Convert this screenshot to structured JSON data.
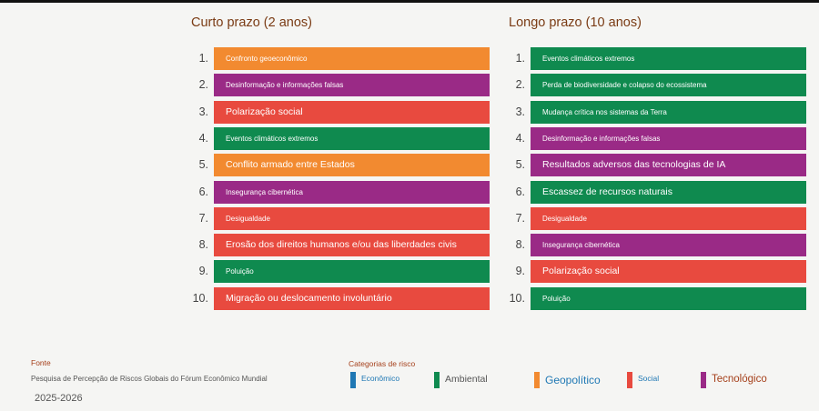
{
  "colors": {
    "Econômico": "#1f78b4",
    "Ambiental": "#0f8a4f",
    "Geopolítico": "#f28a30",
    "Social": "#e84a3f",
    "Tecnológico": "#9a2a86"
  },
  "chart_data": [
    {
      "type": "table",
      "title": "Curto prazo (2 anos)",
      "rows": [
        {
          "rank": "1.",
          "label": "Confronto geoeconômico",
          "category": "Geopolítico"
        },
        {
          "rank": "2.",
          "label": "Desinformação e informações falsas",
          "category": "Tecnológico"
        },
        {
          "rank": "3.",
          "label": "Polarização social",
          "category": "Social"
        },
        {
          "rank": "4.",
          "label": "Eventos climáticos extremos",
          "category": "Ambiental"
        },
        {
          "rank": "5.",
          "label": "Conflito armado entre Estados",
          "category": "Geopolítico"
        },
        {
          "rank": "6.",
          "label": "Insegurança cibernética",
          "category": "Tecnológico"
        },
        {
          "rank": "7.",
          "label": "Desigualdade",
          "category": "Social"
        },
        {
          "rank": "8.",
          "label": "Erosão dos direitos humanos e/ou das liberdades civis",
          "category": "Social"
        },
        {
          "rank": "9.",
          "label": "Poluição",
          "category": "Ambiental"
        },
        {
          "rank": "10.",
          "label": "Migração ou deslocamento involuntário",
          "category": "Social"
        }
      ]
    },
    {
      "type": "table",
      "title": "Longo prazo (10 anos)",
      "rows": [
        {
          "rank": "1.",
          "label": "Eventos climáticos extremos",
          "category": "Ambiental"
        },
        {
          "rank": "2.",
          "label": "Perda de biodiversidade e colapso do ecossistema",
          "category": "Ambiental"
        },
        {
          "rank": "3.",
          "label": "Mudança crítica nos sistemas da Terra",
          "category": "Ambiental"
        },
        {
          "rank": "4.",
          "label": "Desinformação e informações falsas",
          "category": "Tecnológico"
        },
        {
          "rank": "5.",
          "label": "Resultados adversos das tecnologias de IA",
          "category": "Tecnológico"
        },
        {
          "rank": "6.",
          "label": "Escassez de recursos naturais",
          "category": "Ambiental"
        },
        {
          "rank": "7.",
          "label": "Desigualdade",
          "category": "Social"
        },
        {
          "rank": "8.",
          "label": "Insegurança cibernética",
          "category": "Tecnológico"
        },
        {
          "rank": "9.",
          "label": "Polarização social",
          "category": "Social"
        },
        {
          "rank": "10.",
          "label": "Poluição",
          "category": "Ambiental"
        }
      ]
    }
  ],
  "footer": {
    "source_label": "Fonte",
    "source_text": "Pesquisa de Percepção de Riscos Globais do Fórum Econômico Mundial",
    "year": "2025-2026",
    "categories_label": "Categorias de risco"
  },
  "legend": [
    {
      "name": "Econômico",
      "text_color": "#1f78b4"
    },
    {
      "name": "Ambiental",
      "text_color": "#555555"
    },
    {
      "name": "Geopolítico",
      "text_color": "#1f78b4"
    },
    {
      "name": "Social",
      "text_color": "#1f78b4"
    },
    {
      "name": "Tecnológico",
      "text_color": "#a5401b"
    }
  ]
}
